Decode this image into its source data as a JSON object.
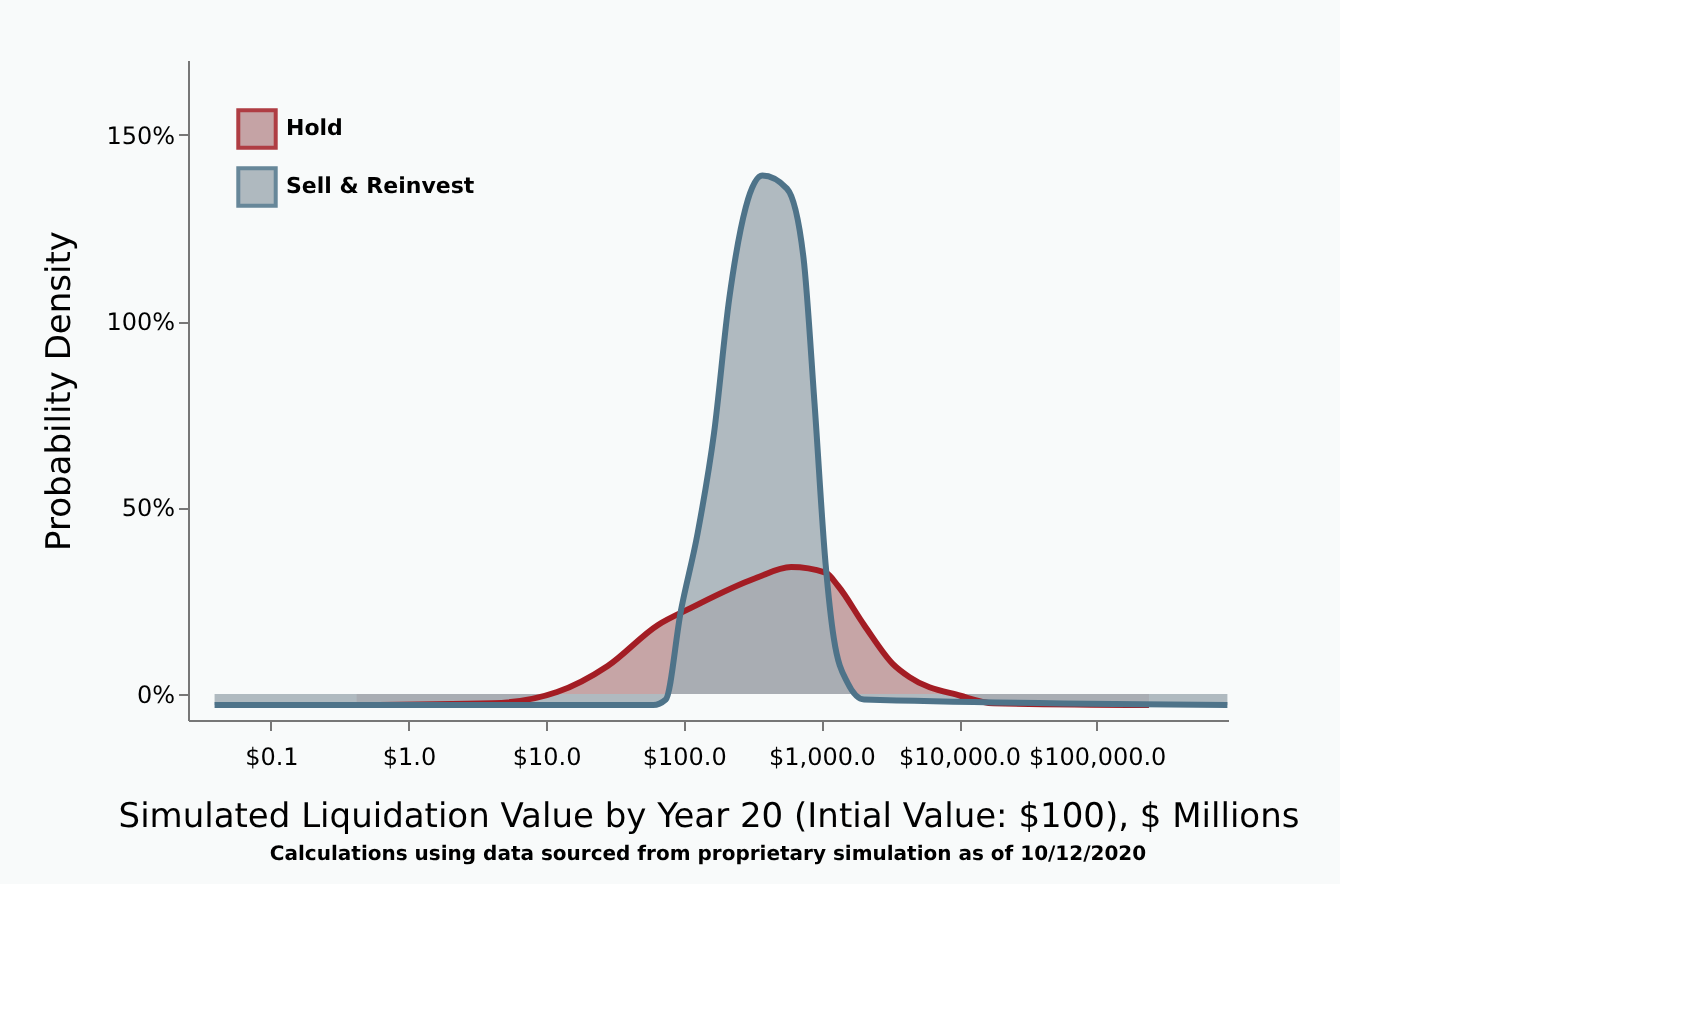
{
  "chart_data": {
    "type": "area",
    "xlabel": "Simulated Liquidation Value by Year 20 (Intial Value: $100), $ Millions",
    "ylabel": "Probability Density",
    "annotations": [
      "Calculations using data sourced from proprietary simulation as of 10/12/2020"
    ],
    "log": "x",
    "xlim": [
      0.025,
      900000
    ],
    "xticks": [
      {
        "value": 0.1,
        "label": "$0.1"
      },
      {
        "value": 1,
        "label": "$1.0"
      },
      {
        "value": 10,
        "label": "$10.0"
      },
      {
        "value": 100,
        "label": "$100.0"
      },
      {
        "value": 1000,
        "label": "$1,000.0"
      },
      {
        "value": 10000,
        "label": "$10,000.0"
      },
      {
        "value": 100000,
        "label": "$100,000.0"
      }
    ],
    "ylim": [
      -7,
      170
    ],
    "yticks": [
      {
        "value": 0,
        "label": "0%"
      },
      {
        "value": 50,
        "label": "50%"
      },
      {
        "value": 100,
        "label": "100%"
      },
      {
        "value": 150,
        "label": "150%"
      }
    ],
    "grid": false,
    "legend": "top left",
    "series": [
      {
        "name": "Hold",
        "color": "#a31d24",
        "x": [
          0.42,
          4.1,
          12,
          28,
          65,
          112,
          331,
          603,
          1072,
          1318,
          2042,
          3311,
          4365,
          10230,
          17780,
          240000
        ],
        "values": [
          -3,
          -2.5,
          0.5,
          7.5,
          18.5,
          23,
          31,
          34,
          32.5,
          29,
          18.5,
          8,
          4.5,
          -0.5,
          -2.5,
          -3
        ]
      },
      {
        "name": "Sell & Reinvest",
        "color": "#4e7389",
        "x": [
          0.039,
          60,
          74,
          95,
          126,
          166,
          214,
          372,
          562,
          741,
          891,
          1072,
          1230,
          1549,
          2042,
          891000
        ],
        "values": [
          -3,
          -3,
          -1.5,
          22,
          43,
          70,
          106,
          139,
          135.5,
          117,
          78,
          35,
          15,
          3,
          -1.5,
          -3
        ]
      }
    ]
  }
}
